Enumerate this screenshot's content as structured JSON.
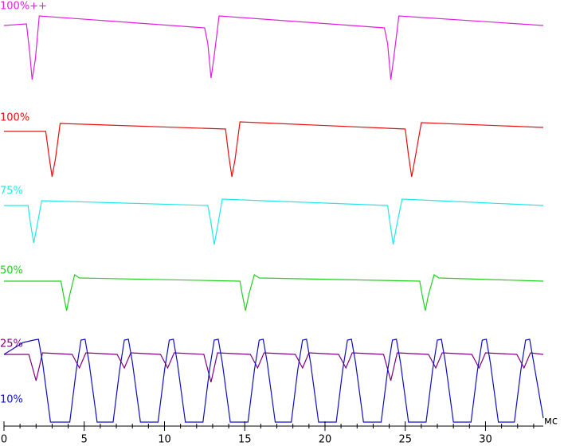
{
  "chart_data": {
    "type": "line",
    "x_label": "мс",
    "xlim": [
      0,
      33.6
    ],
    "ylim": [
      0,
      53.5
    ],
    "xticks": [
      0,
      5,
      10,
      15,
      20,
      25,
      30
    ],
    "xminorticks": [
      1,
      2,
      3,
      4,
      6,
      7,
      8,
      9,
      11,
      12,
      13,
      14,
      16,
      17,
      18,
      19,
      21,
      22,
      23,
      24,
      26,
      27,
      28,
      29,
      31,
      32,
      33
    ],
    "series": [
      {
        "name": "100%++",
        "color": "#e020e0",
        "x": [
          0,
          1.4,
          1.6,
          1.75,
          1.95,
          2.2,
          12.5,
          12.7,
          12.9,
          13.1,
          13.4,
          23.7,
          23.9,
          24.1,
          24.3,
          24.6,
          33.6
        ],
        "values": [
          50.3,
          50.5,
          47,
          43.5,
          46,
          51.5,
          50,
          48,
          43.7,
          46.5,
          51.5,
          50,
          48,
          43.5,
          46.5,
          51.5,
          50.3
        ]
      },
      {
        "name": "100%",
        "color": "#e81010",
        "x": [
          0,
          2.6,
          2.8,
          3.0,
          3.2,
          3.5,
          13.8,
          14.0,
          14.2,
          14.4,
          14.7,
          25.0,
          25.2,
          25.4,
          25.6,
          26.0,
          33.6
        ],
        "values": [
          37.0,
          37.0,
          34,
          31.3,
          33.5,
          38.0,
          37.3,
          34,
          31.3,
          33.5,
          38.2,
          37.3,
          34,
          31.3,
          33.5,
          38.1,
          37.5
        ]
      },
      {
        "name": "75%",
        "color": "#20e8e8",
        "x": [
          0,
          1.5,
          1.65,
          1.85,
          2.05,
          2.35,
          12.7,
          12.9,
          13.1,
          13.3,
          13.6,
          23.9,
          24.05,
          24.25,
          24.45,
          24.8,
          33.6
        ],
        "values": [
          27.7,
          27.7,
          25.5,
          23.0,
          25,
          28.3,
          27.7,
          25.5,
          22.8,
          25,
          28.5,
          27.7,
          25.5,
          22.8,
          25,
          28.5,
          27.7
        ]
      },
      {
        "name": "50%",
        "color": "#20d020",
        "x": [
          0,
          3.55,
          3.7,
          3.9,
          4.1,
          4.4,
          4.7,
          14.7,
          14.85,
          15.05,
          15.25,
          15.6,
          15.9,
          25.9,
          26.05,
          26.25,
          26.45,
          26.8,
          27.1,
          33.6
        ],
        "values": [
          18.2,
          18.2,
          16.5,
          14.5,
          16.5,
          19.0,
          18.6,
          18.2,
          16.5,
          14.5,
          16.5,
          19.0,
          18.6,
          18.2,
          16.5,
          14.5,
          16.5,
          19.0,
          18.6,
          18.2
        ]
      },
      {
        "name": "25%",
        "color": "#800080",
        "x": [
          0,
          1.55,
          2.0,
          2.4,
          4.25,
          4.7,
          5.1,
          7.05,
          7.5,
          7.9,
          9.75,
          10.2,
          10.6,
          12.45,
          12.9,
          13.3,
          15.35,
          15.8,
          16.2,
          18.15,
          18.6,
          19.0,
          20.85,
          21.3,
          21.7,
          23.65,
          24.1,
          24.5,
          26.45,
          26.9,
          27.3,
          29.15,
          29.6,
          30.0,
          31.95,
          32.4,
          32.8,
          33.6
        ],
        "values": [
          9.0,
          9.0,
          5.7,
          9.2,
          9.0,
          7.3,
          9.2,
          9.0,
          7.3,
          9.2,
          9.0,
          7.3,
          9.2,
          9.0,
          5.5,
          9.2,
          9.0,
          7.3,
          9.2,
          9.0,
          7.3,
          9.2,
          9.0,
          7.3,
          9.2,
          9.0,
          5.7,
          9.2,
          9.0,
          7.3,
          9.2,
          9.0,
          7.3,
          9.2,
          9.0,
          7.3,
          9.2,
          9.0
        ]
      },
      {
        "name": "10%",
        "color": "#1010c0",
        "x": [
          0,
          1.2,
          1.85,
          2.15,
          2.4,
          2.9,
          4.1,
          4.5,
          4.8,
          5.05,
          5.3,
          5.8,
          6.8,
          7.2,
          7.5,
          7.75,
          8.0,
          8.5,
          9.6,
          10.0,
          10.3,
          10.55,
          10.8,
          11.3,
          12.4,
          12.8,
          13.1,
          13.35,
          13.6,
          14.1,
          15.2,
          15.6,
          15.9,
          16.15,
          16.4,
          16.9,
          17.9,
          18.3,
          18.6,
          18.85,
          19.1,
          19.6,
          20.7,
          21.1,
          21.4,
          21.65,
          21.9,
          22.4,
          23.5,
          23.9,
          24.2,
          24.45,
          24.7,
          25.2,
          26.3,
          26.7,
          27.0,
          27.25,
          27.5,
          28.0,
          29.1,
          29.5,
          29.8,
          30.05,
          30.3,
          30.8,
          31.8,
          32.2,
          32.5,
          32.75,
          33.0,
          33.6
        ],
        "values": [
          9.0,
          10.5,
          10.8,
          10.9,
          8,
          0.5,
          0.5,
          7,
          10.8,
          10.9,
          8,
          0.5,
          0.5,
          7,
          10.8,
          10.9,
          8,
          0.5,
          0.5,
          7,
          10.8,
          10.9,
          8,
          0.5,
          0.5,
          7,
          10.8,
          10.9,
          8,
          0.5,
          0.5,
          7,
          10.8,
          10.9,
          8,
          0.5,
          0.5,
          7,
          10.8,
          10.9,
          8,
          0.5,
          0.5,
          7,
          10.8,
          10.9,
          8,
          0.5,
          0.5,
          7,
          10.8,
          10.9,
          8,
          0.5,
          0.5,
          7,
          10.8,
          10.9,
          8,
          0.5,
          0.5,
          7,
          10.8,
          10.9,
          8,
          0.5,
          0.5,
          7,
          10.8,
          10.9,
          8,
          1.0
        ]
      }
    ]
  }
}
